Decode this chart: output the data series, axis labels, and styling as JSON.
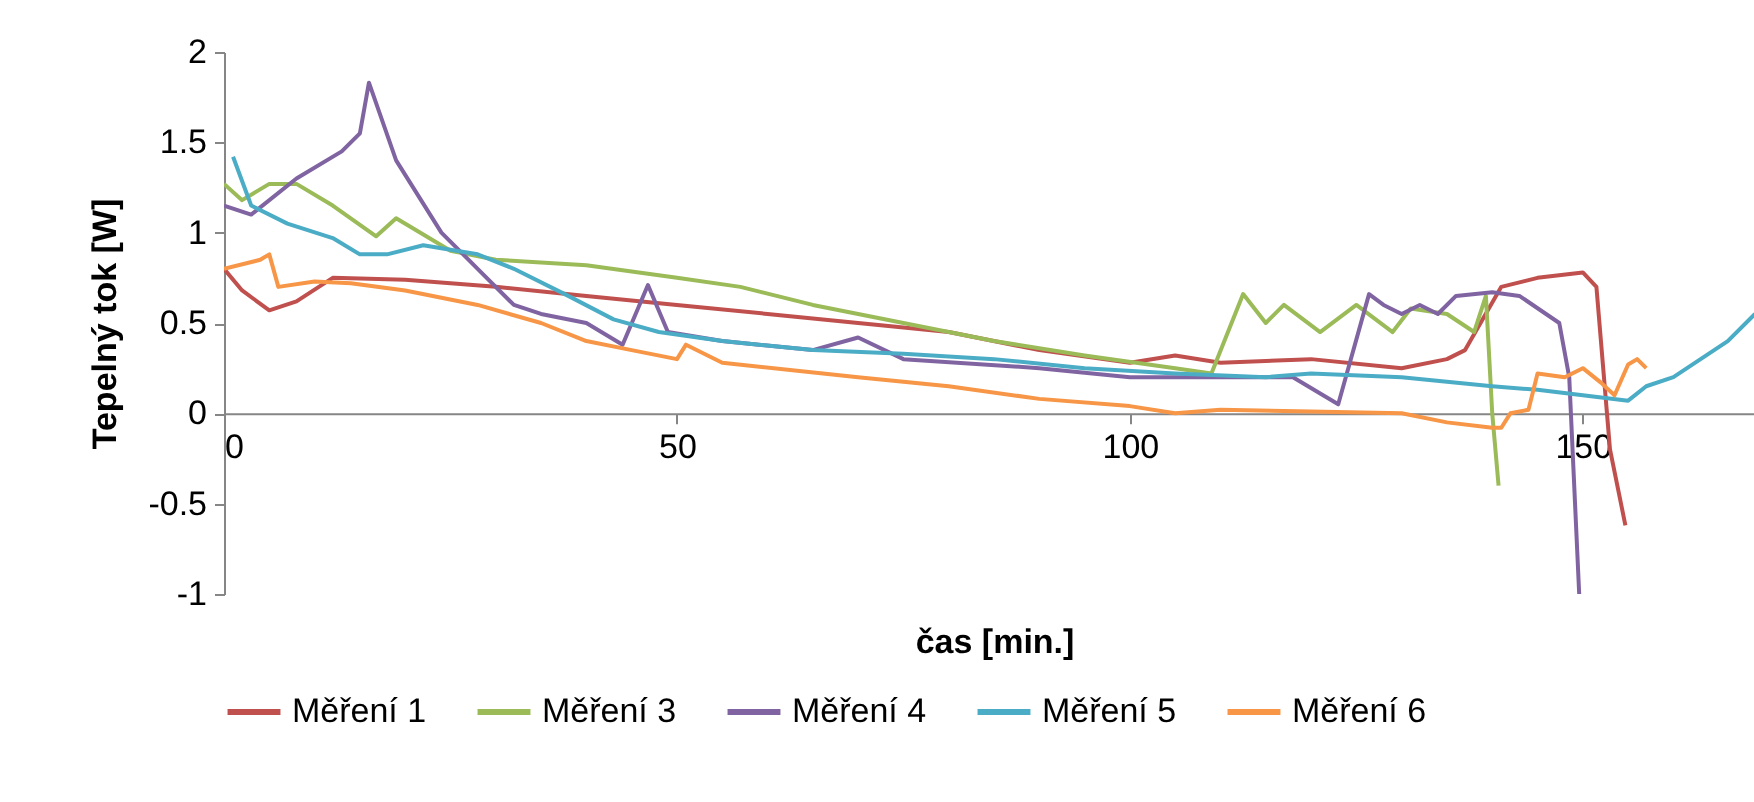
{
  "chart_data": {
    "type": "line",
    "xlabel": "čas [min.]",
    "ylabel": "Tepelný tok [W]",
    "xlim": [
      0,
      170
    ],
    "xticks": [
      0,
      50,
      100,
      150
    ],
    "ylim": [
      -1,
      2
    ],
    "yticks": [
      {
        "value": -1,
        "label": "-1"
      },
      {
        "value": -0.5,
        "label": "-0.5"
      },
      0,
      0.5,
      1,
      1.5,
      2
    ],
    "legend": "bottom",
    "series": [
      {
        "name": "Měření 1",
        "color": "#c0504d",
        "x": [
          0,
          2,
          5,
          8,
          12,
          20,
          30,
          40,
          50,
          60,
          70,
          80,
          90,
          100,
          105,
          110,
          120,
          130,
          135,
          137,
          141,
          145,
          150,
          151.5,
          153,
          154.7
        ],
        "values": [
          0.8,
          0.68,
          0.57,
          0.62,
          0.75,
          0.74,
          0.7,
          0.65,
          0.6,
          0.55,
          0.5,
          0.45,
          0.35,
          0.28,
          0.32,
          0.28,
          0.3,
          0.25,
          0.3,
          0.35,
          0.7,
          0.75,
          0.78,
          0.7,
          -0.2,
          -0.62
        ]
      },
      {
        "name": "Měření 3",
        "color": "#9bbb59",
        "x": [
          0,
          2,
          5,
          8,
          12,
          16.8,
          19,
          25,
          30,
          40,
          50,
          57,
          65,
          75,
          85,
          95,
          105,
          109,
          112.5,
          115,
          117,
          121,
          125,
          129,
          131,
          135,
          138,
          139.3,
          140,
          140.7
        ],
        "values": [
          1.27,
          1.18,
          1.27,
          1.27,
          1.15,
          0.98,
          1.08,
          0.9,
          0.85,
          0.82,
          0.75,
          0.7,
          0.6,
          0.5,
          0.4,
          0.32,
          0.25,
          0.22,
          0.66,
          0.5,
          0.6,
          0.45,
          0.6,
          0.45,
          0.58,
          0.55,
          0.45,
          0.65,
          0.0,
          -0.4
        ]
      },
      {
        "name": "Měření 4",
        "color": "#8064a2",
        "x": [
          0,
          3,
          8,
          13,
          15,
          16,
          19,
          24,
          28,
          32,
          35,
          40,
          44,
          46.8,
          49,
          55,
          65,
          70,
          75,
          90,
          100,
          110,
          118,
          123,
          126.4,
          128,
          130,
          132,
          134,
          136,
          140,
          143,
          147.4,
          148.5,
          149.6
        ],
        "values": [
          1.15,
          1.1,
          1.3,
          1.45,
          1.55,
          1.83,
          1.4,
          1.0,
          0.8,
          0.6,
          0.55,
          0.5,
          0.38,
          0.71,
          0.45,
          0.4,
          0.35,
          0.42,
          0.3,
          0.25,
          0.2,
          0.2,
          0.2,
          0.05,
          0.66,
          0.6,
          0.55,
          0.6,
          0.55,
          0.65,
          0.67,
          0.65,
          0.5,
          0.2,
          -1
        ]
      },
      {
        "name": "Měření 5",
        "color": "#4bacc6",
        "x": [
          1,
          3,
          7,
          12,
          15,
          18,
          22,
          28,
          32,
          38,
          43,
          48,
          55,
          65,
          75,
          85,
          95,
          105,
          115,
          120,
          130,
          140,
          145,
          150,
          155,
          157,
          160,
          163,
          166,
          169
        ],
        "values": [
          1.42,
          1.15,
          1.05,
          0.97,
          0.88,
          0.88,
          0.93,
          0.88,
          0.8,
          0.65,
          0.52,
          0.45,
          0.4,
          0.35,
          0.33,
          0.3,
          0.25,
          0.22,
          0.2,
          0.22,
          0.2,
          0.15,
          0.13,
          0.1,
          0.07,
          0.15,
          0.2,
          0.3,
          0.4,
          0.55
        ]
      },
      {
        "name": "Měření 6",
        "color": "#f79646",
        "x": [
          0,
          4,
          5,
          6,
          10,
          14,
          20,
          28,
          35,
          40,
          45,
          50,
          51,
          55,
          70,
          80,
          90,
          100,
          105,
          110,
          120,
          130,
          135,
          140,
          141,
          142,
          144,
          145,
          148,
          150,
          152,
          153.5,
          155,
          156,
          157
        ],
        "values": [
          0.8,
          0.85,
          0.88,
          0.7,
          0.73,
          0.72,
          0.68,
          0.6,
          0.5,
          0.4,
          0.35,
          0.3,
          0.38,
          0.28,
          0.2,
          0.15,
          0.08,
          0.04,
          0.0,
          0.02,
          0.01,
          0.0,
          -0.05,
          -0.08,
          -0.08,
          0.0,
          0.02,
          0.22,
          0.2,
          0.25,
          0.17,
          0.1,
          0.27,
          0.3,
          0.25
        ]
      }
    ]
  }
}
